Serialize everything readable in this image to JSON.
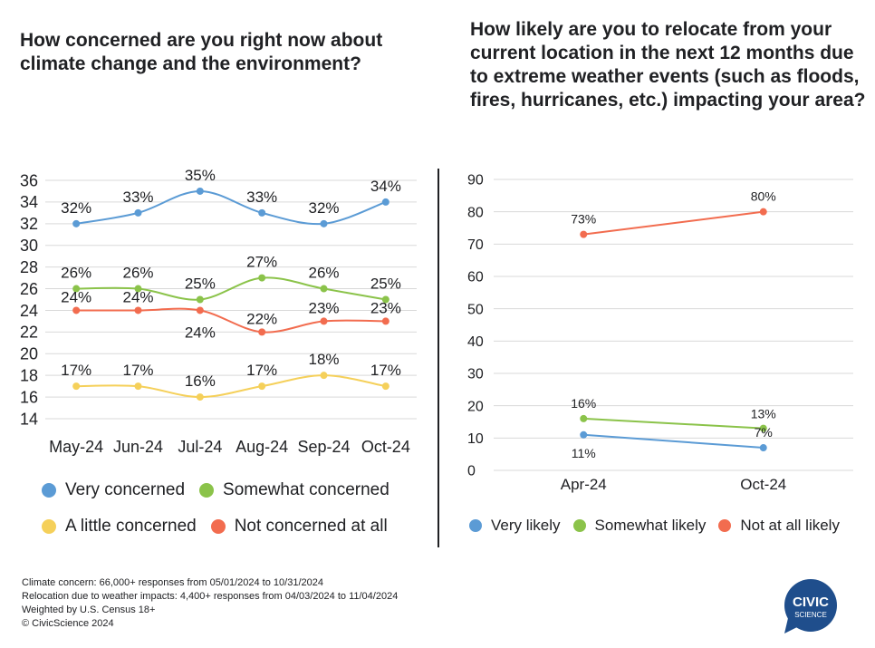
{
  "left_chart": {
    "title": "How concerned are you right now about climate change and the environment?",
    "legend": [
      {
        "label": "Very concerned",
        "color": "#5b9bd5"
      },
      {
        "label": "Somewhat concerned",
        "color": "#8bc34a"
      },
      {
        "label": "A little concerned",
        "color": "#f5d05a"
      },
      {
        "label": "Not concerned at all",
        "color": "#f26c4f"
      }
    ]
  },
  "right_chart": {
    "title": "How likely are you to relocate from your current location in the next 12 months due to extreme weather events (such as floods, fires, hurricanes, etc.) impacting your area?",
    "legend": [
      {
        "label": "Very likely",
        "color": "#5b9bd5"
      },
      {
        "label": "Somewhat likely",
        "color": "#8bc34a"
      },
      {
        "label": "Not at all likely",
        "color": "#f26c4f"
      }
    ]
  },
  "chart_data": [
    {
      "type": "line",
      "smooth": true,
      "title": "How concerned are you right now about climate change and the environment?",
      "categories": [
        "May-24",
        "Jun-24",
        "Jul-24",
        "Aug-24",
        "Sep-24",
        "Oct-24"
      ],
      "ylim": [
        14,
        36
      ],
      "yticks": [
        14,
        16,
        18,
        20,
        22,
        24,
        26,
        28,
        30,
        32,
        34,
        36
      ],
      "grid": true,
      "legend_position": "bottom",
      "series": [
        {
          "name": "Very concerned",
          "color": "#5b9bd5",
          "values": [
            32,
            33,
            35,
            33,
            32,
            34
          ],
          "labels": [
            "32%",
            "33%",
            "35%",
            "33%",
            "32%",
            "34%"
          ]
        },
        {
          "name": "Somewhat concerned",
          "color": "#8bc34a",
          "values": [
            26,
            26,
            25,
            27,
            26,
            25
          ],
          "labels": [
            "26%",
            "26%",
            "25%",
            "27%",
            "26%",
            "25%"
          ]
        },
        {
          "name": "A little concerned",
          "color": "#f5d05a",
          "values": [
            17,
            17,
            16,
            17,
            18,
            17
          ],
          "labels": [
            "17%",
            "17%",
            "16%",
            "17%",
            "18%",
            "17%"
          ]
        },
        {
          "name": "Not concerned at all",
          "color": "#f26c4f",
          "values": [
            24,
            24,
            24,
            22,
            23,
            23
          ],
          "labels": [
            "24%",
            "24%",
            "24%",
            "22%",
            "23%",
            "23%"
          ]
        }
      ]
    },
    {
      "type": "line",
      "title": "How likely are you to relocate from your current location in the next 12 months due to extreme weather events (such as floods, fires, hurricanes, etc.) impacting your area?",
      "categories": [
        "Apr-24",
        "Oct-24"
      ],
      "ylim": [
        0,
        90
      ],
      "yticks": [
        0,
        10,
        20,
        30,
        40,
        50,
        60,
        70,
        80,
        90
      ],
      "grid": true,
      "legend_position": "bottom",
      "series": [
        {
          "name": "Very likely",
          "color": "#5b9bd5",
          "values": [
            11,
            7
          ],
          "labels": [
            "11%",
            "7%"
          ]
        },
        {
          "name": "Somewhat likely",
          "color": "#8bc34a",
          "values": [
            16,
            13
          ],
          "labels": [
            "16%",
            "13%"
          ]
        },
        {
          "name": "Not at all likely",
          "color": "#f26c4f",
          "values": [
            73,
            80
          ],
          "labels": [
            "73%",
            "80%"
          ]
        }
      ]
    }
  ],
  "footer": {
    "lines": [
      "Climate concern: 66,000+ responses from 05/01/2024 to 10/31/2024",
      "Relocation due to weather impacts: 4,400+ responses from 04/03/2024 to 11/04/2024",
      "Weighted by U.S. Census 18+",
      "© CivicScience 2024"
    ]
  },
  "logo": {
    "line1": "CIVIC",
    "line2": "SCIENCE",
    "color": "#1f4e8c"
  }
}
